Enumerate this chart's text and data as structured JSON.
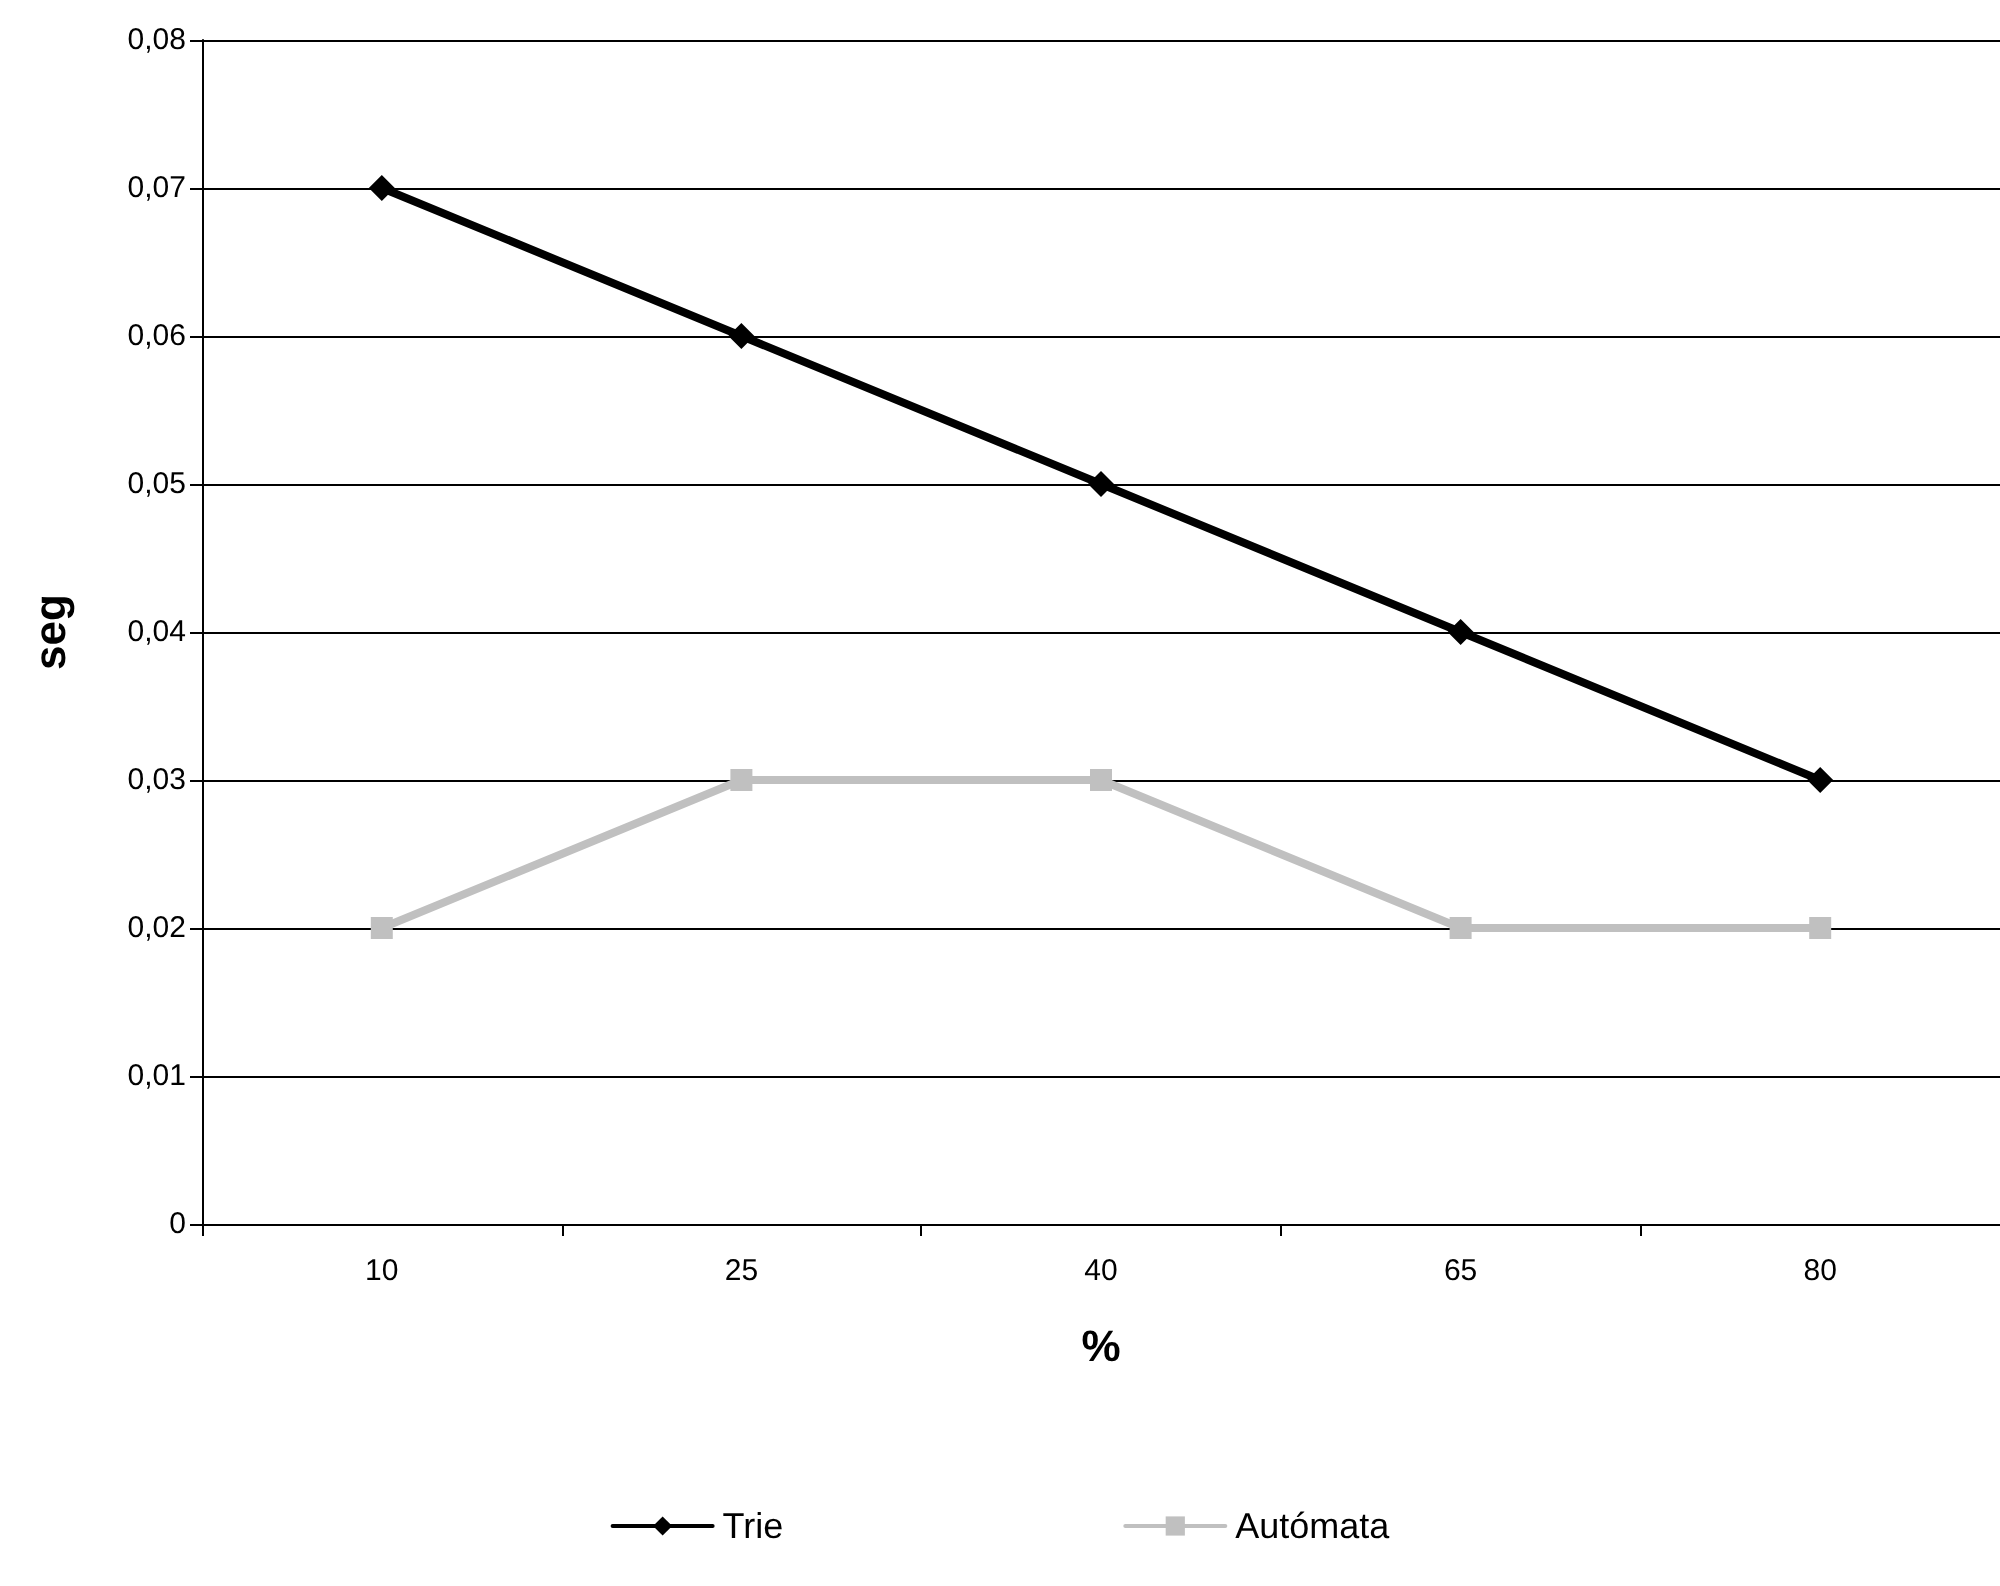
{
  "chart_data": {
    "type": "line",
    "xlabel": "%",
    "ylabel": "seg",
    "categories": [
      "10",
      "25",
      "40",
      "65",
      "80"
    ],
    "series": [
      {
        "name": "Trie",
        "color": "#000000",
        "marker": "diamond",
        "values": [
          0.07,
          0.06,
          0.05,
          0.04,
          0.03
        ]
      },
      {
        "name": "Autómata",
        "color": "#c0c0c0",
        "marker": "square",
        "values": [
          0.02,
          0.03,
          0.03,
          0.02,
          0.02
        ]
      }
    ],
    "ylim": [
      0,
      0.08
    ],
    "yticks": [
      0,
      {
        "value": 0.01,
        "label": "0,01"
      },
      {
        "value": 0.02,
        "label": "0,02"
      },
      {
        "value": 0.03,
        "label": "0,03"
      },
      {
        "value": 0.04,
        "label": "0,04"
      },
      {
        "value": 0.05,
        "label": "0,05"
      },
      {
        "value": 0.06,
        "label": "0,06"
      },
      {
        "value": 0.07,
        "label": "0,07"
      },
      {
        "value": 0.08,
        "label": "0,08"
      }
    ],
    "grid": "y",
    "legend": "bottom",
    "line_style": "solid"
  }
}
